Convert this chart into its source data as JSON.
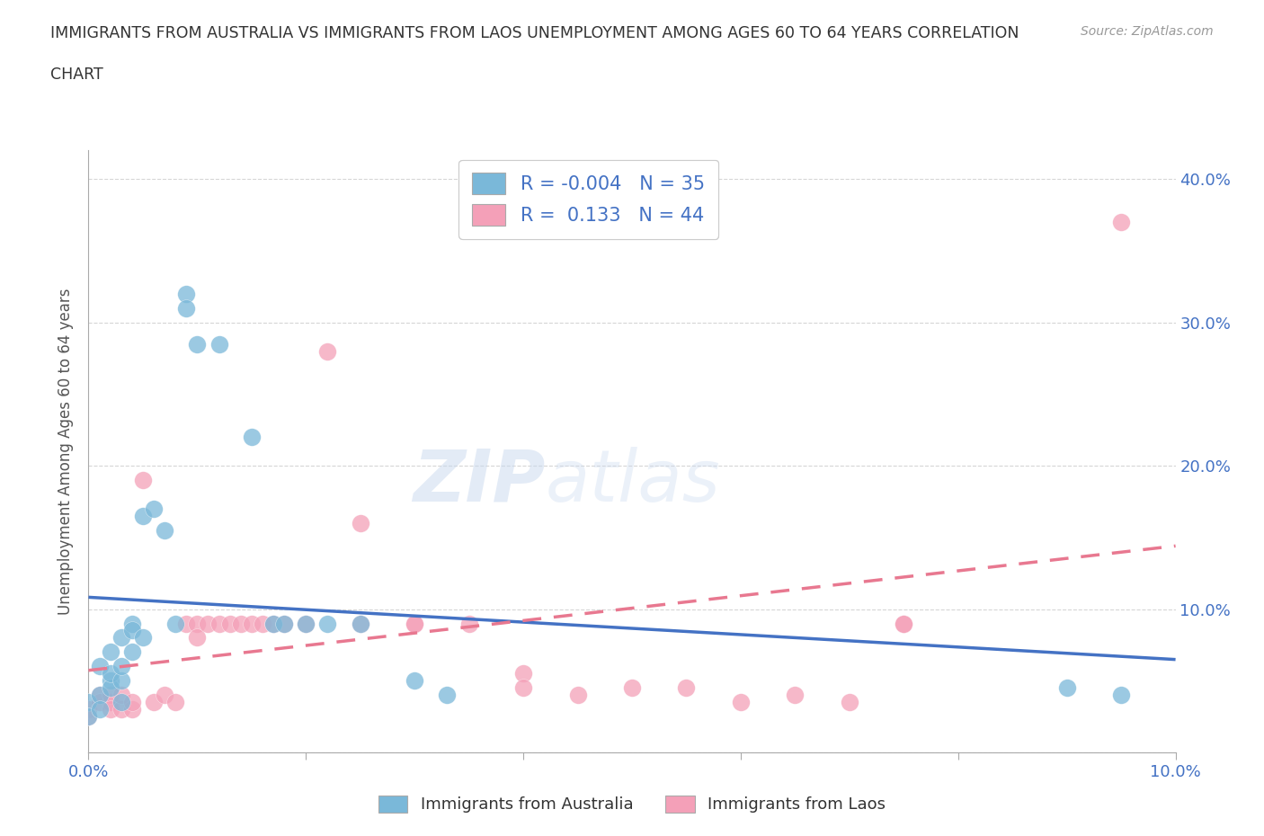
{
  "title_line1": "IMMIGRANTS FROM AUSTRALIA VS IMMIGRANTS FROM LAOS UNEMPLOYMENT AMONG AGES 60 TO 64 YEARS CORRELATION",
  "title_line2": "CHART",
  "source_text": "Source: ZipAtlas.com",
  "ylabel": "Unemployment Among Ages 60 to 64 years",
  "xlim": [
    0.0,
    0.1
  ],
  "ylim": [
    0.0,
    0.42
  ],
  "xtick_pos": [
    0.0,
    0.02,
    0.04,
    0.06,
    0.08,
    0.1
  ],
  "xtick_labels": [
    "0.0%",
    "",
    "",
    "",
    "",
    "10.0%"
  ],
  "ytick_pos": [
    0.0,
    0.1,
    0.2,
    0.3,
    0.4
  ],
  "ytick_labels": [
    "",
    "10.0%",
    "20.0%",
    "30.0%",
    "40.0%"
  ],
  "australia_color": "#7ab8d9",
  "laos_color": "#f4a0b8",
  "australia_line_color": "#4472c4",
  "laos_line_color": "#e87890",
  "watermark_zip": "ZIP",
  "watermark_atlas": "atlas",
  "australia_scatter": [
    [
      0.0,
      0.035
    ],
    [
      0.0,
      0.025
    ],
    [
      0.001,
      0.04
    ],
    [
      0.001,
      0.03
    ],
    [
      0.001,
      0.06
    ],
    [
      0.002,
      0.05
    ],
    [
      0.002,
      0.045
    ],
    [
      0.002,
      0.07
    ],
    [
      0.002,
      0.055
    ],
    [
      0.003,
      0.05
    ],
    [
      0.003,
      0.06
    ],
    [
      0.003,
      0.08
    ],
    [
      0.003,
      0.035
    ],
    [
      0.004,
      0.09
    ],
    [
      0.004,
      0.085
    ],
    [
      0.004,
      0.07
    ],
    [
      0.005,
      0.08
    ],
    [
      0.005,
      0.165
    ],
    [
      0.006,
      0.17
    ],
    [
      0.007,
      0.155
    ],
    [
      0.008,
      0.09
    ],
    [
      0.009,
      0.32
    ],
    [
      0.009,
      0.31
    ],
    [
      0.01,
      0.285
    ],
    [
      0.012,
      0.285
    ],
    [
      0.015,
      0.22
    ],
    [
      0.017,
      0.09
    ],
    [
      0.018,
      0.09
    ],
    [
      0.02,
      0.09
    ],
    [
      0.022,
      0.09
    ],
    [
      0.025,
      0.09
    ],
    [
      0.03,
      0.05
    ],
    [
      0.033,
      0.04
    ],
    [
      0.09,
      0.045
    ],
    [
      0.095,
      0.04
    ]
  ],
  "laos_scatter": [
    [
      0.0,
      0.03
    ],
    [
      0.0,
      0.025
    ],
    [
      0.001,
      0.04
    ],
    [
      0.001,
      0.035
    ],
    [
      0.002,
      0.035
    ],
    [
      0.002,
      0.04
    ],
    [
      0.002,
      0.03
    ],
    [
      0.003,
      0.03
    ],
    [
      0.003,
      0.04
    ],
    [
      0.004,
      0.03
    ],
    [
      0.004,
      0.035
    ],
    [
      0.005,
      0.19
    ],
    [
      0.006,
      0.035
    ],
    [
      0.007,
      0.04
    ],
    [
      0.008,
      0.035
    ],
    [
      0.009,
      0.09
    ],
    [
      0.01,
      0.09
    ],
    [
      0.01,
      0.08
    ],
    [
      0.011,
      0.09
    ],
    [
      0.012,
      0.09
    ],
    [
      0.013,
      0.09
    ],
    [
      0.014,
      0.09
    ],
    [
      0.015,
      0.09
    ],
    [
      0.016,
      0.09
    ],
    [
      0.017,
      0.09
    ],
    [
      0.018,
      0.09
    ],
    [
      0.02,
      0.09
    ],
    [
      0.022,
      0.28
    ],
    [
      0.025,
      0.09
    ],
    [
      0.025,
      0.16
    ],
    [
      0.03,
      0.09
    ],
    [
      0.03,
      0.09
    ],
    [
      0.035,
      0.09
    ],
    [
      0.04,
      0.055
    ],
    [
      0.04,
      0.045
    ],
    [
      0.045,
      0.04
    ],
    [
      0.05,
      0.045
    ],
    [
      0.055,
      0.045
    ],
    [
      0.06,
      0.035
    ],
    [
      0.065,
      0.04
    ],
    [
      0.07,
      0.035
    ],
    [
      0.075,
      0.09
    ],
    [
      0.075,
      0.09
    ],
    [
      0.095,
      0.37
    ]
  ],
  "australia_R": -0.004,
  "australia_N": 35,
  "laos_R": 0.133,
  "laos_N": 44,
  "background_color": "#ffffff",
  "grid_color": "#cccccc"
}
